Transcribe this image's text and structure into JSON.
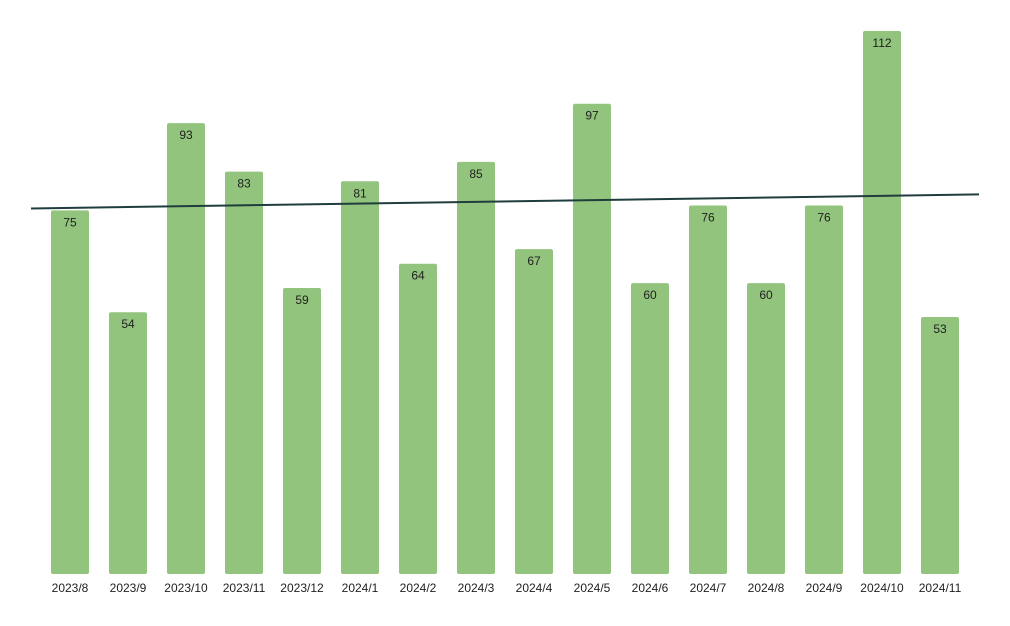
{
  "chart_data": {
    "type": "bar",
    "categories": [
      "2023/8",
      "2023/9",
      "2023/10",
      "2023/11",
      "2023/12",
      "2024/1",
      "2024/2",
      "2024/3",
      "2024/4",
      "2024/5",
      "2024/6",
      "2024/7",
      "2024/8",
      "2024/9",
      "2024/10",
      "2024/11"
    ],
    "values": [
      75,
      54,
      93,
      83,
      59,
      81,
      64,
      85,
      67,
      97,
      60,
      76,
      60,
      76,
      112,
      53
    ],
    "trendline": {
      "type": "linear",
      "start": 75.4,
      "end": 78.3
    },
    "ylim": [
      0,
      112
    ],
    "grid": false,
    "legend": "none",
    "data_labels": true,
    "colors": {
      "bar": "#93c47d",
      "trendline": "#1f3d3d",
      "label": "#1f1f1f"
    }
  }
}
